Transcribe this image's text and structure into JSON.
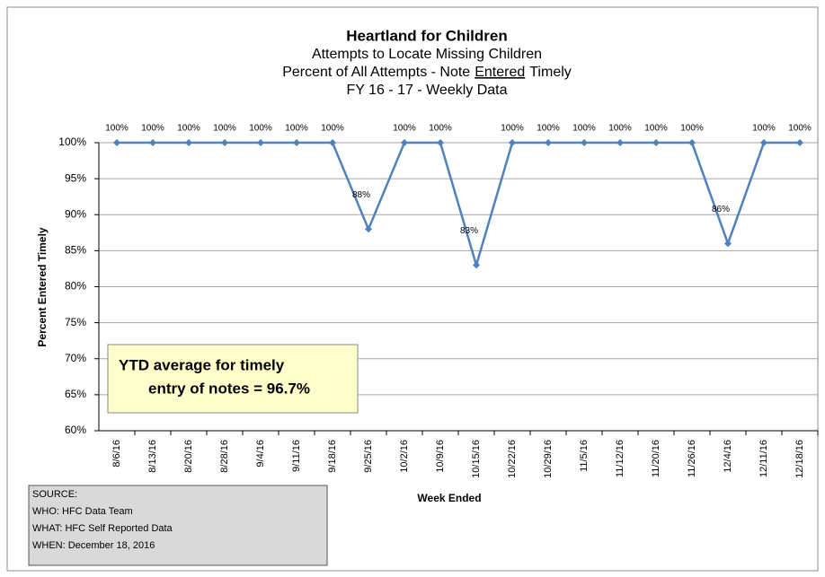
{
  "chart_data": {
    "type": "line",
    "title": "Heartland for Children",
    "subtitle": [
      "Attempts to Locate Missing Children",
      {
        "before": "Percent of All Attempts -  Note",
        "underlined": "Entered",
        "after": "Timely"
      },
      "FY 16 - 17 - Weekly Data"
    ],
    "x_label": "Week Ended",
    "y_label": "Percent Entered Timely",
    "categories": [
      "8/6/16",
      "8/13/16",
      "8/20/16",
      "8/28/16",
      "9/4/16",
      "9/11/16",
      "9/18/16",
      "9/25/16",
      "10/2/16",
      "10/9/16",
      "10/15/16",
      "10/22/16",
      "10/29/16",
      "11/5/16",
      "11/12/16",
      "11/20/16",
      "11/26/16",
      "12/4/16",
      "12/11/16",
      "12/18/16"
    ],
    "series": [
      {
        "name": "Percent Entered Timely",
        "color": "#4f81bd",
        "values": [
          100,
          100,
          100,
          100,
          100,
          100,
          100,
          88,
          100,
          100,
          83,
          100,
          100,
          100,
          100,
          100,
          100,
          86,
          100,
          100
        ],
        "value_labels": [
          "100%",
          "100%",
          "100%",
          "100%",
          "100%",
          "100%",
          "100%",
          "88%",
          "100%",
          "100%",
          "83%",
          "100%",
          "100%",
          "100%",
          "100%",
          "100%",
          "100%",
          "86%",
          "100%",
          "100%"
        ]
      }
    ],
    "ylim": [
      60,
      100
    ],
    "yticks": [
      {
        "value": 60,
        "label": "60%"
      },
      {
        "value": 65,
        "label": "65%"
      },
      {
        "value": 70,
        "label": "70%"
      },
      {
        "value": 75,
        "label": "75%"
      },
      {
        "value": 80,
        "label": "80%"
      },
      {
        "value": 85,
        "label": "85%"
      },
      {
        "value": 90,
        "label": "90%"
      },
      {
        "value": 95,
        "label": "95%"
      },
      {
        "value": 100,
        "label": "100%"
      }
    ],
    "grid": true,
    "annotation": [
      "YTD average for timely",
      "entry of notes =  96.7%"
    ],
    "source": [
      "SOURCE:",
      "WHO:   HFC Data Team",
      "WHAT:  HFC Self Reported Data",
      "WHEN:  December 18, 2016"
    ]
  }
}
